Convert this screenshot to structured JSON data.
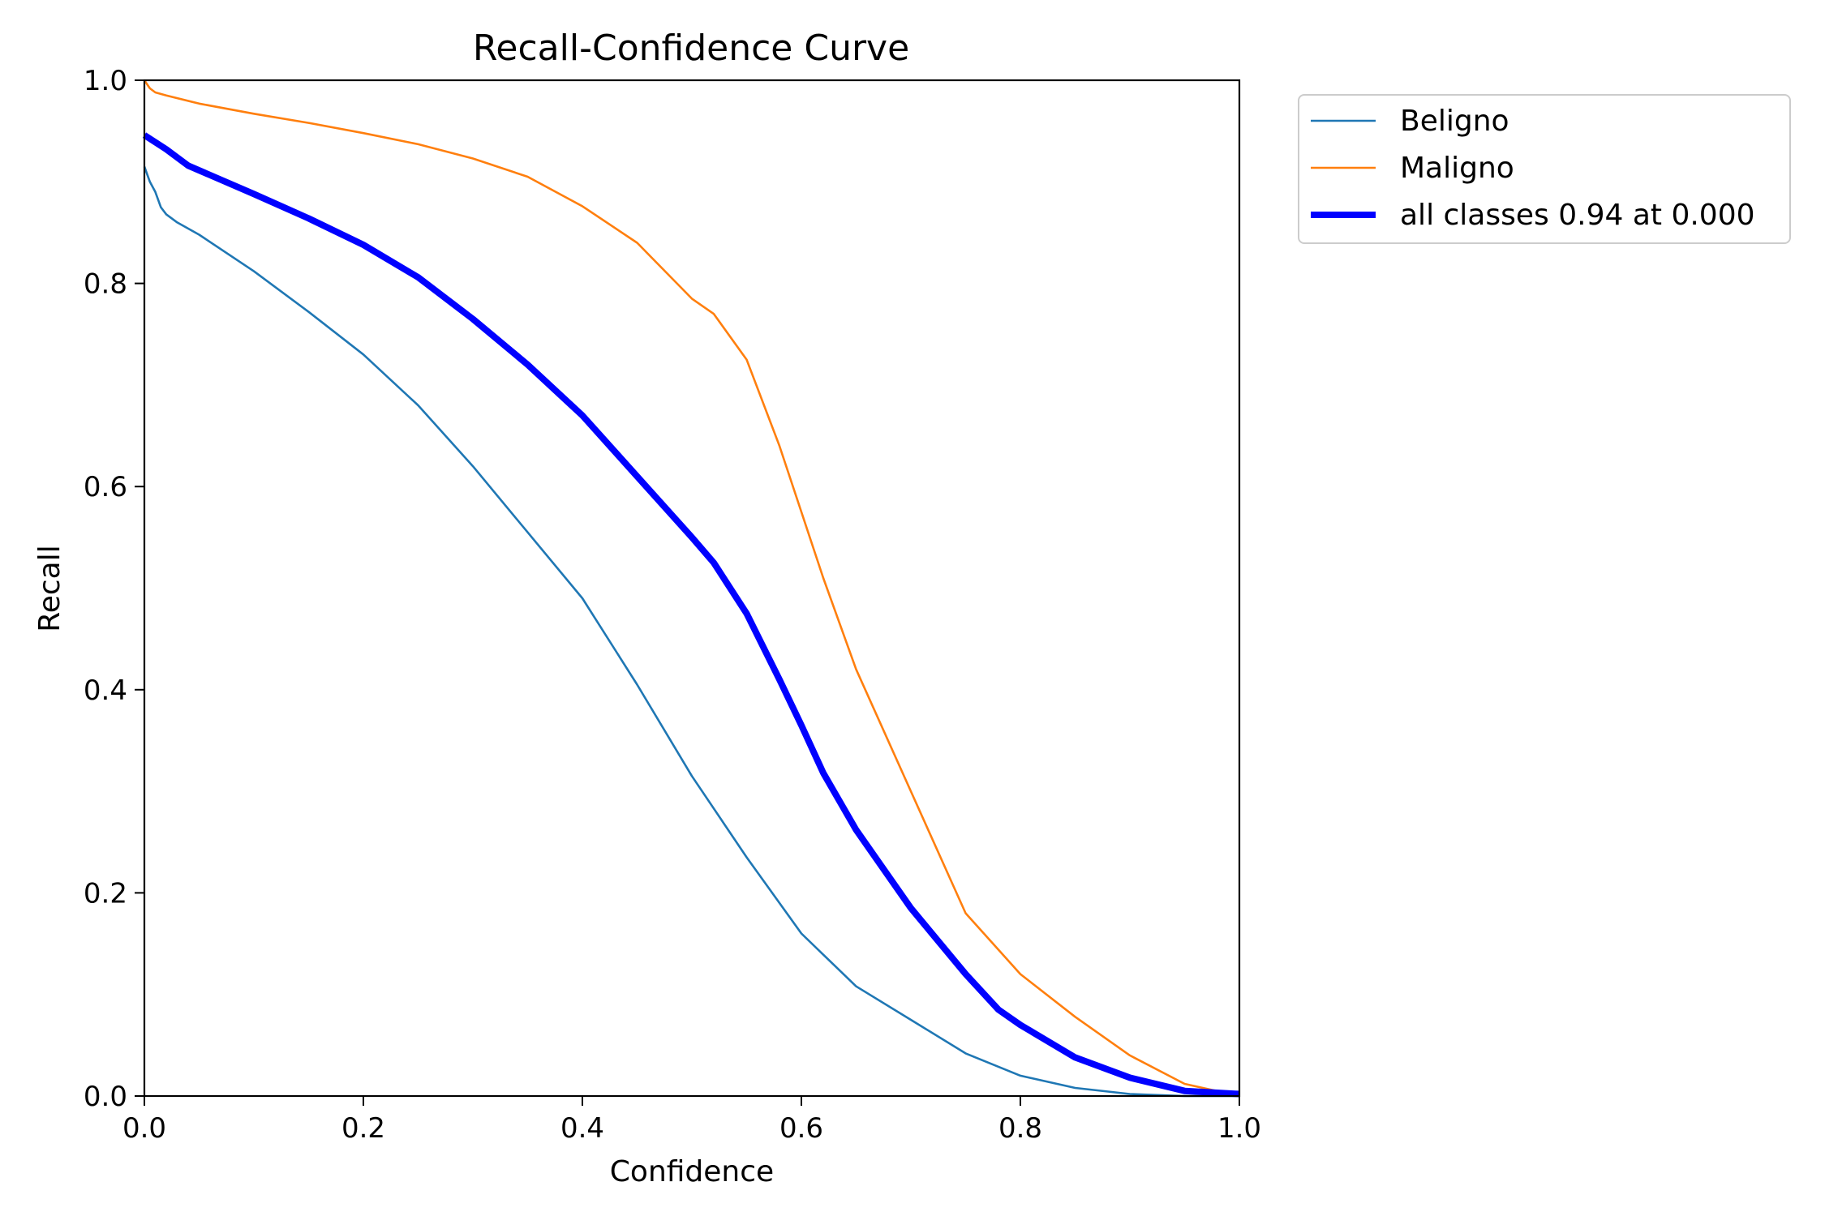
{
  "chart_data": {
    "type": "line",
    "title": "Recall-Confidence Curve",
    "xlabel": "Confidence",
    "ylabel": "Recall",
    "xlim": [
      0,
      1
    ],
    "ylim": [
      0,
      1
    ],
    "xticks": [
      "0.0",
      "0.2",
      "0.4",
      "0.6",
      "0.8",
      "1.0"
    ],
    "yticks": [
      "0.0",
      "0.2",
      "0.4",
      "0.6",
      "0.8",
      "1.0"
    ],
    "grid": false,
    "legend_position": "outside-top-right",
    "series": [
      {
        "name": "Beligno",
        "color": "#1f77b4",
        "linewidth": "thin",
        "x": [
          0.0,
          0.005,
          0.01,
          0.015,
          0.02,
          0.03,
          0.05,
          0.1,
          0.15,
          0.2,
          0.25,
          0.3,
          0.35,
          0.4,
          0.45,
          0.5,
          0.55,
          0.6,
          0.65,
          0.7,
          0.75,
          0.8,
          0.85,
          0.9,
          0.95,
          1.0
        ],
        "y": [
          0.915,
          0.9,
          0.89,
          0.875,
          0.868,
          0.86,
          0.848,
          0.812,
          0.772,
          0.73,
          0.68,
          0.62,
          0.555,
          0.49,
          0.405,
          0.315,
          0.235,
          0.16,
          0.108,
          0.075,
          0.042,
          0.02,
          0.008,
          0.002,
          0.0,
          0.0
        ]
      },
      {
        "name": "Maligno",
        "color": "#ff7f0e",
        "linewidth": "thin",
        "x": [
          0.0,
          0.005,
          0.01,
          0.02,
          0.05,
          0.1,
          0.15,
          0.2,
          0.25,
          0.3,
          0.35,
          0.4,
          0.45,
          0.5,
          0.52,
          0.55,
          0.58,
          0.6,
          0.62,
          0.65,
          0.7,
          0.75,
          0.8,
          0.85,
          0.9,
          0.95,
          1.0
        ],
        "y": [
          1.0,
          0.992,
          0.988,
          0.985,
          0.977,
          0.967,
          0.958,
          0.948,
          0.937,
          0.923,
          0.905,
          0.876,
          0.84,
          0.785,
          0.77,
          0.725,
          0.64,
          0.575,
          0.51,
          0.42,
          0.3,
          0.18,
          0.12,
          0.078,
          0.04,
          0.012,
          0.0
        ]
      },
      {
        "name": "all classes 0.94 at 0.000",
        "color": "#0000ff",
        "linewidth": "thick",
        "x": [
          0.0,
          0.02,
          0.04,
          0.1,
          0.15,
          0.2,
          0.25,
          0.3,
          0.35,
          0.4,
          0.45,
          0.5,
          0.52,
          0.55,
          0.58,
          0.6,
          0.62,
          0.65,
          0.7,
          0.75,
          0.78,
          0.8,
          0.85,
          0.9,
          0.95,
          1.0
        ],
        "y": [
          0.946,
          0.932,
          0.916,
          0.888,
          0.864,
          0.838,
          0.806,
          0.765,
          0.72,
          0.67,
          0.61,
          0.55,
          0.525,
          0.475,
          0.41,
          0.365,
          0.318,
          0.262,
          0.185,
          0.12,
          0.085,
          0.07,
          0.038,
          0.018,
          0.005,
          0.002
        ]
      }
    ]
  }
}
